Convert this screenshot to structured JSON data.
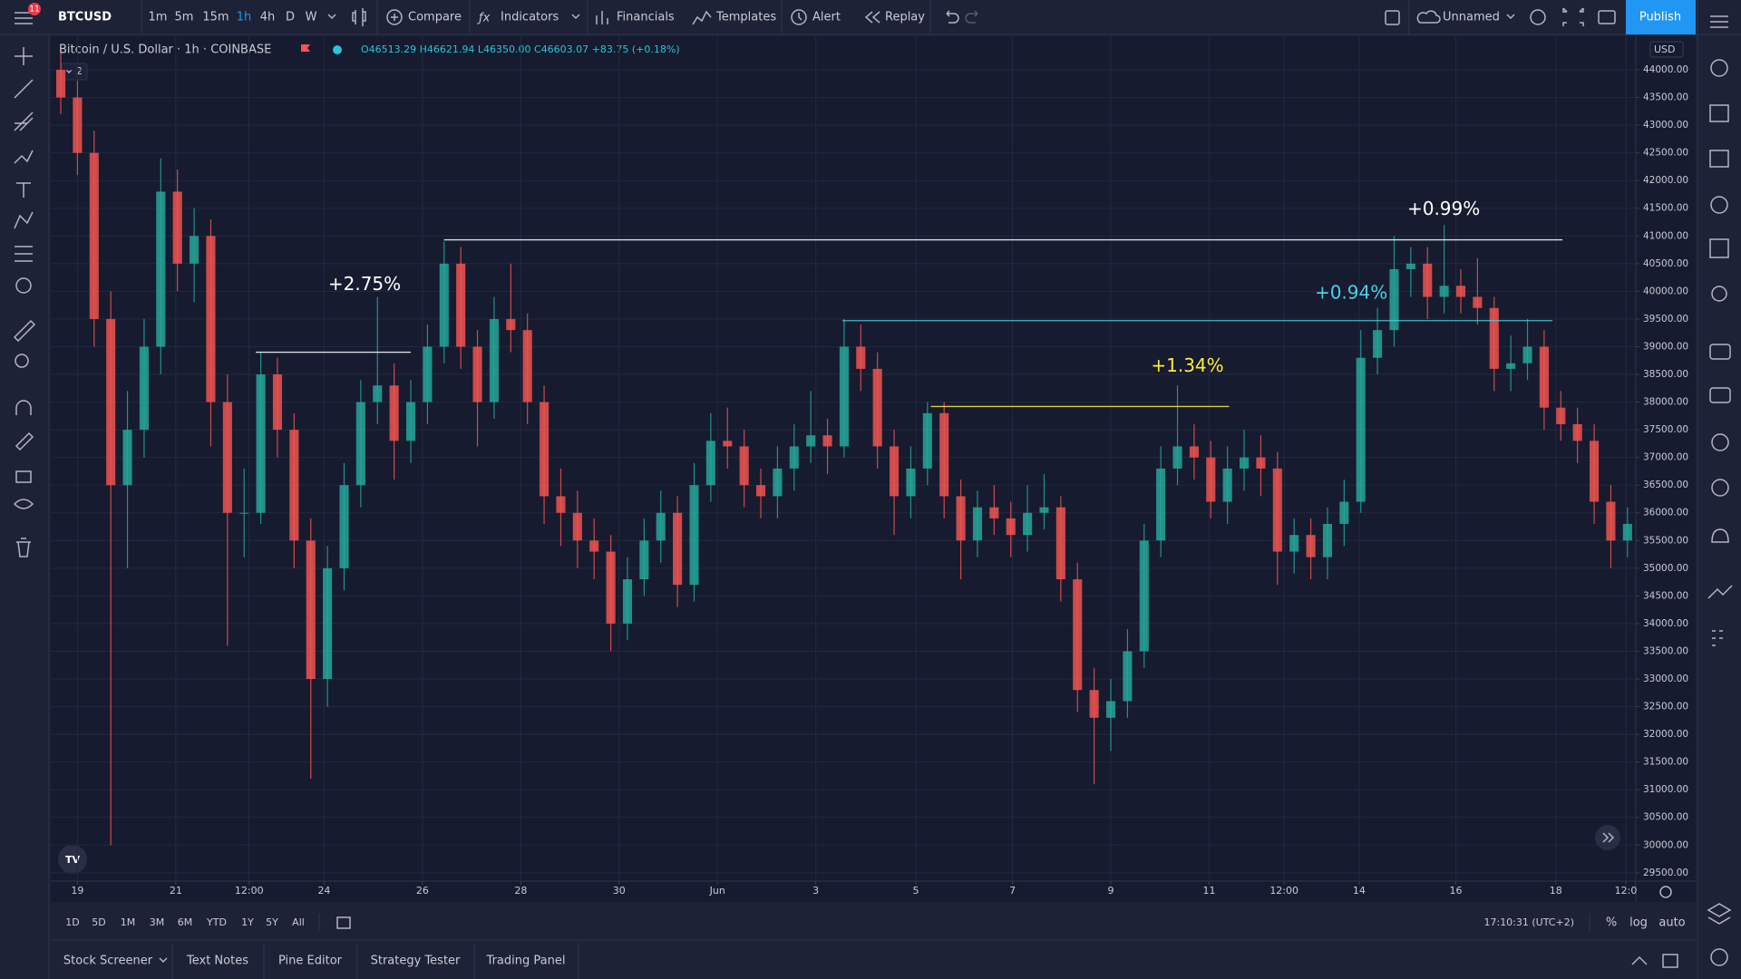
{
  "toolbar": {
    "symbol": "BTCUSD",
    "badge": "11",
    "intervals": [
      "1m",
      "5m",
      "15m",
      "1h",
      "4h",
      "D",
      "W"
    ],
    "compare": "Compare",
    "indicators": "Indicators",
    "financials": "Financials",
    "templates": "Templates",
    "alert": "Alert",
    "replay": "Replay",
    "layout": "Unnamed",
    "publish": "Publish"
  },
  "legend": {
    "title": "Bitcoin / U.S. Dollar · 1h · COINBASE",
    "ohlc": "O46513.29 H46621.94 L46350.00 C46603.07 +83.75 (+0.18%)",
    "collapse": "2"
  },
  "currency": "USD",
  "chart_data": {
    "type": "candlestick",
    "up_color": "#26a69a",
    "down_color": "#ef5350",
    "grid": true,
    "candles": [
      [
        44000,
        44300,
        43200,
        43500
      ],
      [
        43500,
        43800,
        42100,
        42500
      ],
      [
        42500,
        42900,
        39000,
        39500
      ],
      [
        39500,
        40000,
        30000,
        36500
      ],
      [
        36500,
        38200,
        35000,
        37500
      ],
      [
        37500,
        39500,
        37000,
        39000
      ],
      [
        39000,
        42400,
        38500,
        41800
      ],
      [
        41800,
        42200,
        40000,
        40500
      ],
      [
        40500,
        41500,
        39800,
        41000
      ],
      [
        41000,
        41300,
        37200,
        38000
      ],
      [
        38000,
        38500,
        33600,
        36000
      ],
      [
        36000,
        36800,
        35200,
        36000
      ],
      [
        36000,
        38900,
        35800,
        38500
      ],
      [
        38500,
        38800,
        37000,
        37500
      ],
      [
        37500,
        37800,
        35000,
        35500
      ],
      [
        35500,
        35900,
        31200,
        33000
      ],
      [
        33000,
        35400,
        32500,
        35000
      ],
      [
        35000,
        36900,
        34600,
        36500
      ],
      [
        36500,
        38400,
        36100,
        38000
      ],
      [
        38000,
        39900,
        37600,
        38300
      ],
      [
        38300,
        38700,
        36600,
        37300
      ],
      [
        37300,
        38400,
        36900,
        38000
      ],
      [
        38000,
        39400,
        37600,
        39000
      ],
      [
        39000,
        40900,
        38700,
        40500
      ],
      [
        40500,
        40800,
        38600,
        39000
      ],
      [
        39000,
        39300,
        37200,
        38000
      ],
      [
        38000,
        39900,
        37700,
        39500
      ],
      [
        39500,
        40500,
        38900,
        39300
      ],
      [
        39300,
        39600,
        37600,
        38000
      ],
      [
        38000,
        38300,
        35800,
        36300
      ],
      [
        36300,
        36800,
        35400,
        36000
      ],
      [
        36000,
        36400,
        35000,
        35500
      ],
      [
        35500,
        35900,
        34800,
        35300
      ],
      [
        35300,
        35600,
        33500,
        34000
      ],
      [
        34000,
        35200,
        33700,
        34800
      ],
      [
        34800,
        35900,
        34500,
        35500
      ],
      [
        35500,
        36400,
        35100,
        36000
      ],
      [
        36000,
        36300,
        34300,
        34700
      ],
      [
        34700,
        36900,
        34400,
        36500
      ],
      [
        36500,
        37800,
        36200,
        37300
      ],
      [
        37300,
        37900,
        36800,
        37200
      ],
      [
        37200,
        37500,
        36100,
        36500
      ],
      [
        36500,
        36800,
        35900,
        36300
      ],
      [
        36300,
        37200,
        35900,
        36800
      ],
      [
        36800,
        37600,
        36400,
        37200
      ],
      [
        37200,
        38200,
        36900,
        37400
      ],
      [
        37400,
        37700,
        36700,
        37200
      ],
      [
        37200,
        39500,
        37000,
        39000
      ],
      [
        39000,
        39400,
        38200,
        38600
      ],
      [
        38600,
        38900,
        36800,
        37200
      ],
      [
        37200,
        37500,
        35600,
        36300
      ],
      [
        36300,
        37200,
        35900,
        36800
      ],
      [
        36800,
        38000,
        36500,
        37800
      ],
      [
        37800,
        38000,
        35900,
        36300
      ],
      [
        36300,
        36600,
        34800,
        35500
      ],
      [
        35500,
        36400,
        35200,
        36100
      ],
      [
        36100,
        36500,
        35600,
        35900
      ],
      [
        35900,
        36200,
        35200,
        35600
      ],
      [
        35600,
        36500,
        35300,
        36000
      ],
      [
        36000,
        36700,
        35700,
        36100
      ],
      [
        36100,
        36300,
        34400,
        34800
      ],
      [
        34800,
        35100,
        32400,
        32800
      ],
      [
        32800,
        33200,
        31100,
        32300
      ],
      [
        32300,
        33000,
        31700,
        32600
      ],
      [
        32600,
        33900,
        32300,
        33500
      ],
      [
        33500,
        35800,
        33200,
        35500
      ],
      [
        35500,
        37200,
        35200,
        36800
      ],
      [
        36800,
        38300,
        36500,
        37200
      ],
      [
        37200,
        37600,
        36600,
        37000
      ],
      [
        37000,
        37300,
        35900,
        36200
      ],
      [
        36200,
        37200,
        35800,
        36800
      ],
      [
        36800,
        37500,
        36400,
        37000
      ],
      [
        37000,
        37400,
        36300,
        36800
      ],
      [
        36800,
        37100,
        34700,
        35300
      ],
      [
        35300,
        35900,
        34900,
        35600
      ],
      [
        35600,
        35900,
        34800,
        35200
      ],
      [
        35200,
        36100,
        34800,
        35800
      ],
      [
        35800,
        36600,
        35400,
        36200
      ],
      [
        36200,
        39300,
        36000,
        38800
      ],
      [
        38800,
        39700,
        38500,
        39300
      ],
      [
        39300,
        41000,
        39000,
        40400
      ],
      [
        40400,
        40800,
        39900,
        40500
      ],
      [
        40500,
        40800,
        39500,
        39900
      ],
      [
        39900,
        41200,
        39600,
        40100
      ],
      [
        40100,
        40400,
        39600,
        39900
      ],
      [
        39900,
        40600,
        39400,
        39700
      ],
      [
        39700,
        39900,
        38200,
        38600
      ],
      [
        38600,
        39200,
        38200,
        38700
      ],
      [
        38700,
        39500,
        38400,
        39000
      ],
      [
        39000,
        39300,
        37500,
        37900
      ],
      [
        37900,
        38200,
        37300,
        37600
      ],
      [
        37600,
        37900,
        36900,
        37300
      ],
      [
        37300,
        37600,
        35800,
        36200
      ],
      [
        36200,
        36500,
        35000,
        35500
      ],
      [
        35500,
        36100,
        35200,
        35800
      ]
    ],
    "xlim": [
      -0.6,
      94.5
    ],
    "ylim": [
      29350,
      44475
    ],
    "xticks": [
      {
        "value": 1,
        "label": "19"
      },
      {
        "value": 6.9,
        "label": "21"
      },
      {
        "value": 11.3,
        "label": "12:00"
      },
      {
        "value": 15.8,
        "label": "24"
      },
      {
        "value": 21.7,
        "label": "26"
      },
      {
        "value": 27.6,
        "label": "28"
      },
      {
        "value": 33.5,
        "label": "30"
      },
      {
        "value": 39.4,
        "label": "Jun"
      },
      {
        "value": 45.3,
        "label": "3"
      },
      {
        "value": 51.3,
        "label": "5"
      },
      {
        "value": 57.1,
        "label": "7"
      },
      {
        "value": 63,
        "label": "9"
      },
      {
        "value": 68.9,
        "label": "11"
      },
      {
        "value": 73.4,
        "label": "12:00"
      },
      {
        "value": 77.9,
        "label": "14"
      },
      {
        "value": 83.7,
        "label": "16"
      },
      {
        "value": 89.7,
        "label": "18"
      },
      {
        "value": 93.9,
        "label": "12:0"
      }
    ],
    "yticks": [
      {
        "value": 29500,
        "label": "29500.00"
      },
      {
        "value": 30000,
        "label": "30000.00"
      },
      {
        "value": 30500,
        "label": "30500.00"
      },
      {
        "value": 31000,
        "label": "31000.00"
      },
      {
        "value": 31500,
        "label": "31500.00"
      },
      {
        "value": 32000,
        "label": "32000.00"
      },
      {
        "value": 32500,
        "label": "32500.00"
      },
      {
        "value": 33000,
        "label": "33000.00"
      },
      {
        "value": 33500,
        "label": "33500.00"
      },
      {
        "value": 34000,
        "label": "34000.00"
      },
      {
        "value": 34500,
        "label": "34500.00"
      },
      {
        "value": 35000,
        "label": "35000.00"
      },
      {
        "value": 35500,
        "label": "35500.00"
      },
      {
        "value": 36000,
        "label": "36000.00"
      },
      {
        "value": 36500,
        "label": "36500.00"
      },
      {
        "value": 37000,
        "label": "37000.00"
      },
      {
        "value": 37500,
        "label": "37500.00"
      },
      {
        "value": 38000,
        "label": "38000.00"
      },
      {
        "value": 38500,
        "label": "38500.00"
      },
      {
        "value": 39000,
        "label": "39000.00"
      },
      {
        "value": 39500,
        "label": "39500.00"
      },
      {
        "value": 40000,
        "label": "40000.00"
      },
      {
        "value": 40500,
        "label": "40500.00"
      },
      {
        "value": 41000,
        "label": "41000.00"
      },
      {
        "value": 41500,
        "label": "41500.00"
      },
      {
        "value": 42000,
        "label": "42000.00"
      },
      {
        "value": 42500,
        "label": "42500.00"
      },
      {
        "value": 43000,
        "label": "43000.00"
      },
      {
        "value": 43500,
        "label": "43500.00"
      },
      {
        "value": 44000,
        "label": "44000.00"
      }
    ],
    "annotations": [
      {
        "label": "+2.75%",
        "value": 38900,
        "start": 11.7,
        "end": 21,
        "color": "#ffffff"
      },
      {
        "label": "+0.99%",
        "value": 40930,
        "start": 23,
        "end": 90.1,
        "color": "#ffffff"
      },
      {
        "label": "+0.94%",
        "value": 39470,
        "start": 46.9,
        "end": 89.5,
        "color": "#4dd0e1"
      },
      {
        "label": "+1.34%",
        "value": 37920,
        "start": 52.2,
        "end": 70.1,
        "color": "#ffeb3b"
      }
    ]
  },
  "footer": {
    "ranges": [
      "1D",
      "5D",
      "1M",
      "3M",
      "6M",
      "YTD",
      "1Y",
      "5Y",
      "All"
    ],
    "clock": "17:10:31 (UTC+2)",
    "scale": [
      "%",
      "log",
      "auto"
    ]
  },
  "tabs": [
    "Stock Screener",
    "Text Notes",
    "Pine Editor",
    "Strategy Tester",
    "Trading Panel"
  ]
}
